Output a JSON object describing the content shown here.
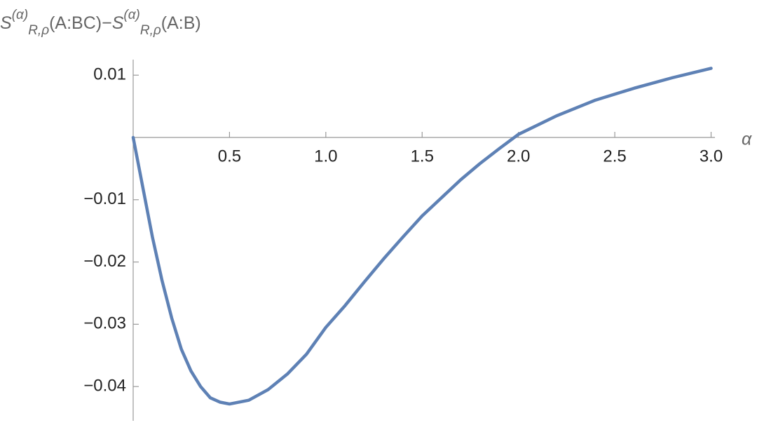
{
  "chart_data": {
    "type": "line",
    "ylabel": [
      "S",
      "(α)",
      "R,ρ",
      "(A:BC)−",
      "S",
      "(α)",
      "R,ρ",
      "(A:B)"
    ],
    "xlabel": "α",
    "x": [
      0,
      0.05,
      0.1,
      0.15,
      0.2,
      0.25,
      0.3,
      0.35,
      0.4,
      0.45,
      0.5,
      0.6,
      0.7,
      0.8,
      0.9,
      1.0,
      1.1,
      1.2,
      1.3,
      1.4,
      1.5,
      1.6,
      1.7,
      1.8,
      1.9,
      2.0,
      2.2,
      2.4,
      2.6,
      2.8,
      3.0
    ],
    "series": [
      {
        "color": "#5e81b5",
        "values": [
          0,
          -0.008,
          -0.016,
          -0.023,
          -0.029,
          -0.034,
          -0.0375,
          -0.04,
          -0.0418,
          -0.0425,
          -0.0428,
          -0.0422,
          -0.0405,
          -0.038,
          -0.0348,
          -0.0305,
          -0.027,
          -0.0232,
          -0.0195,
          -0.016,
          -0.0126,
          -0.0097,
          -0.0068,
          -0.0042,
          -0.0018,
          0.0005,
          0.0035,
          0.006,
          0.0079,
          0.0096,
          0.0111
        ]
      }
    ],
    "xlim": [
      0,
      3.02
    ],
    "ylim": [
      -0.0455,
      0.0125
    ],
    "xticks": [
      0.5,
      {
        "value": 1.0,
        "label": "1.0"
      },
      1.5,
      {
        "value": 2.0,
        "label": "2.0"
      },
      2.5,
      {
        "value": 3.0,
        "label": "3.0"
      }
    ],
    "yticks": [
      0.01,
      {
        "value": -0.01,
        "label": "−0.01"
      },
      {
        "value": -0.02,
        "label": "−0.02"
      },
      {
        "value": -0.03,
        "label": "−0.03"
      },
      {
        "value": -0.04,
        "label": "−0.04"
      }
    ]
  }
}
